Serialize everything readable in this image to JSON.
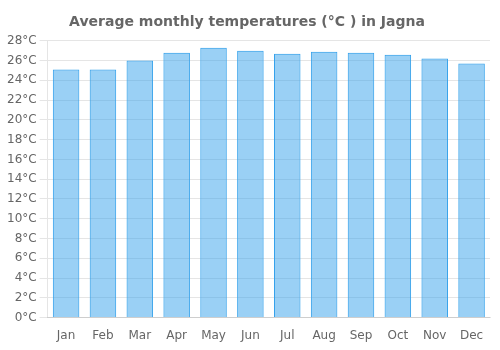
{
  "chart_data": {
    "type": "bar",
    "title": "Average monthly temperatures (°C ) in Jagna",
    "categories": [
      "Jan",
      "Feb",
      "Mar",
      "Apr",
      "May",
      "Jun",
      "Jul",
      "Aug",
      "Sep",
      "Oct",
      "Nov",
      "Dec"
    ],
    "values": [
      25.1,
      25.1,
      26.0,
      26.8,
      27.3,
      27.0,
      26.7,
      26.9,
      26.8,
      26.6,
      26.2,
      25.7
    ],
    "ylim": [
      0,
      28
    ],
    "yticks": [
      {
        "value": 0,
        "label": "0°C"
      },
      {
        "value": 2,
        "label": "2°C"
      },
      {
        "value": 4,
        "label": "4°C"
      },
      {
        "value": 6,
        "label": "6°C"
      },
      {
        "value": 8,
        "label": "8°C"
      },
      {
        "value": 10,
        "label": "10°C"
      },
      {
        "value": 12,
        "label": "12°C"
      },
      {
        "value": 14,
        "label": "14°C"
      },
      {
        "value": 16,
        "label": "16°C"
      },
      {
        "value": 18,
        "label": "18°C"
      },
      {
        "value": 20,
        "label": "20°C"
      },
      {
        "value": 22,
        "label": "22°C"
      },
      {
        "value": 24,
        "label": "24°C"
      },
      {
        "value": 26,
        "label": "26°C"
      },
      {
        "value": 28,
        "label": "28°C"
      }
    ],
    "grid": true
  }
}
